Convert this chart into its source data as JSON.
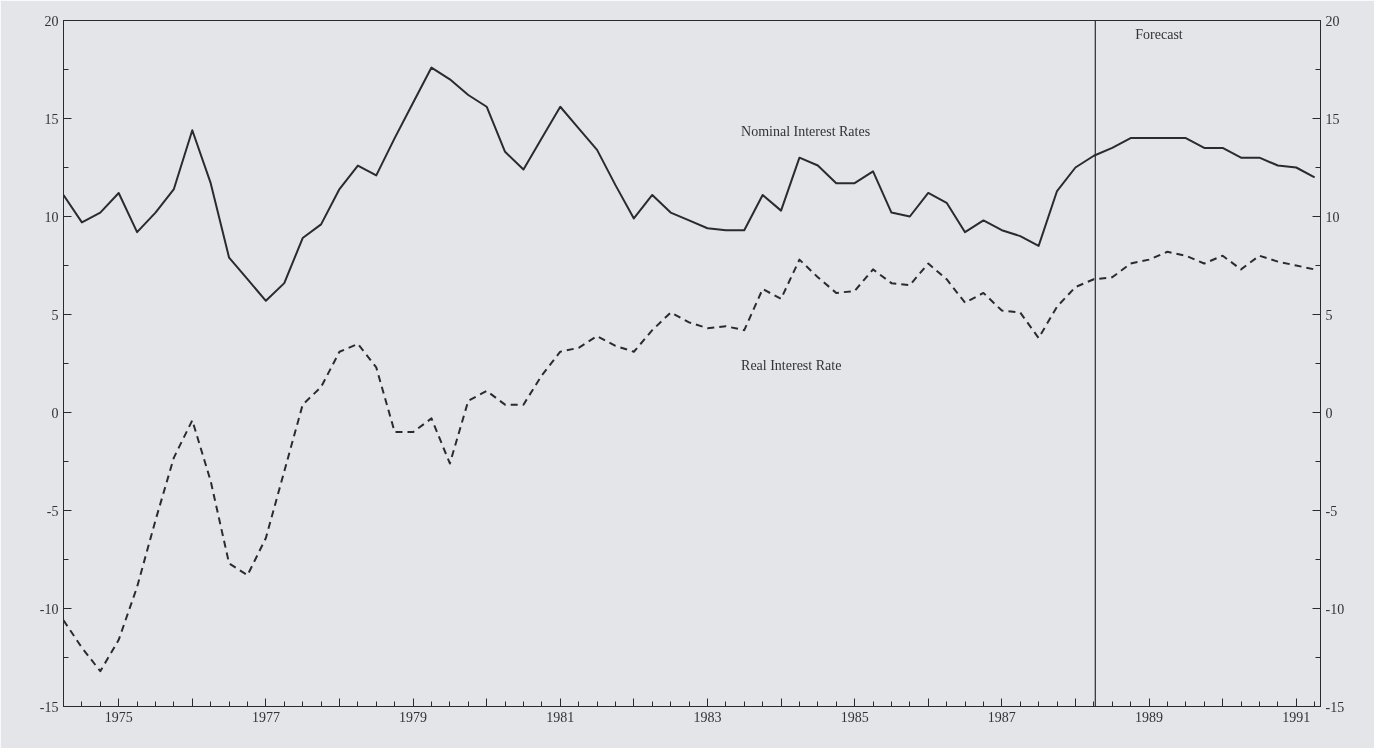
{
  "chart_data": {
    "type": "line",
    "x": [
      1974.25,
      1974.5,
      1974.75,
      1975,
      1975.25,
      1975.5,
      1975.75,
      1976,
      1976.25,
      1976.5,
      1976.75,
      1977,
      1977.25,
      1977.5,
      1977.75,
      1978,
      1978.25,
      1978.5,
      1978.75,
      1979,
      1979.25,
      1979.5,
      1979.75,
      1980,
      1980.25,
      1980.5,
      1980.75,
      1981,
      1981.25,
      1981.5,
      1981.75,
      1982,
      1982.25,
      1982.5,
      1982.75,
      1983,
      1983.25,
      1983.5,
      1983.75,
      1984,
      1984.25,
      1984.5,
      1984.75,
      1985,
      1985.25,
      1985.5,
      1985.75,
      1986,
      1986.25,
      1986.5,
      1986.75,
      1987,
      1987.25,
      1987.5,
      1987.75,
      1988,
      1988.25,
      1988.5,
      1988.75,
      1989,
      1989.25,
      1989.5,
      1989.75,
      1990,
      1990.25,
      1990.5,
      1990.75,
      1991,
      1991.25
    ],
    "series": [
      {
        "name": "Nominal Interest Rates",
        "color": "#2b2b2b",
        "line_style": "solid",
        "values": [
          11.1,
          9.7,
          10.2,
          11.2,
          9.2,
          10.2,
          11.4,
          14.4,
          11.7,
          7.9,
          6.8,
          5.7,
          6.6,
          8.9,
          9.6,
          11.4,
          12.6,
          12.1,
          14.0,
          15.8,
          17.6,
          17.0,
          16.2,
          15.6,
          13.3,
          12.4,
          14.0,
          15.6,
          14.5,
          13.4,
          11.6,
          9.9,
          11.1,
          10.2,
          9.8,
          9.4,
          9.3,
          9.3,
          11.1,
          10.3,
          13.0,
          12.6,
          11.7,
          11.7,
          12.3,
          10.2,
          10.0,
          11.2,
          10.7,
          9.2,
          9.8,
          9.3,
          9.0,
          8.5,
          11.3,
          12.5,
          13.1,
          13.5,
          14.0,
          14.0,
          14.0,
          14.0,
          13.5,
          13.5,
          13.0,
          13.0,
          12.6,
          12.5,
          12.0
        ]
      },
      {
        "name": "Real Interest Rate",
        "color": "#2b2b2b",
        "line_style": "dashed",
        "values": [
          -10.6,
          -12.0,
          -13.2,
          -11.6,
          -8.9,
          -5.5,
          -2.3,
          -0.4,
          -3.5,
          -7.7,
          -8.3,
          -6.4,
          -3.0,
          0.4,
          1.3,
          3.1,
          3.5,
          2.3,
          -1.0,
          -1.0,
          -0.3,
          -2.6,
          0.6,
          1.1,
          0.4,
          0.4,
          1.9,
          3.1,
          3.3,
          3.9,
          3.4,
          3.1,
          4.2,
          5.1,
          4.6,
          4.3,
          4.4,
          4.2,
          6.3,
          5.8,
          7.8,
          6.9,
          6.1,
          6.2,
          7.3,
          6.6,
          6.5,
          7.6,
          6.8,
          5.6,
          6.1,
          5.2,
          5.1,
          3.8,
          5.4,
          6.4,
          6.8,
          6.9,
          7.6,
          7.8,
          8.2,
          8.0,
          7.6,
          8.0,
          7.3,
          8.0,
          7.7,
          7.5,
          7.3
        ]
      }
    ],
    "xlim": [
      1974.25,
      1991.33
    ],
    "xticks": [
      1975,
      {
        "value": 1976,
        "label": null
      },
      1977,
      {
        "value": 1978,
        "label": null
      },
      1979,
      {
        "value": 1980,
        "label": null
      },
      1981,
      {
        "value": 1982,
        "label": null
      },
      1983,
      {
        "value": 1984,
        "label": null
      },
      1985,
      {
        "value": 1986,
        "label": null
      },
      1987,
      {
        "value": 1988,
        "label": null
      },
      1989,
      {
        "value": 1990,
        "label": null
      },
      1991
    ],
    "ylim": [
      -15,
      20
    ],
    "yticks": [
      -15,
      -10,
      -5,
      0,
      5,
      10,
      15,
      20
    ],
    "y2lim": [
      -15,
      20
    ],
    "y2ticks": [
      -15,
      -10,
      -5,
      0,
      5,
      10,
      15,
      20
    ],
    "ref_lines": [
      {
        "axis": "x",
        "value": 1988.27,
        "label": "Forecast",
        "color": "#2b2b2b",
        "line_style": "solid"
      }
    ],
    "grid": false
  }
}
